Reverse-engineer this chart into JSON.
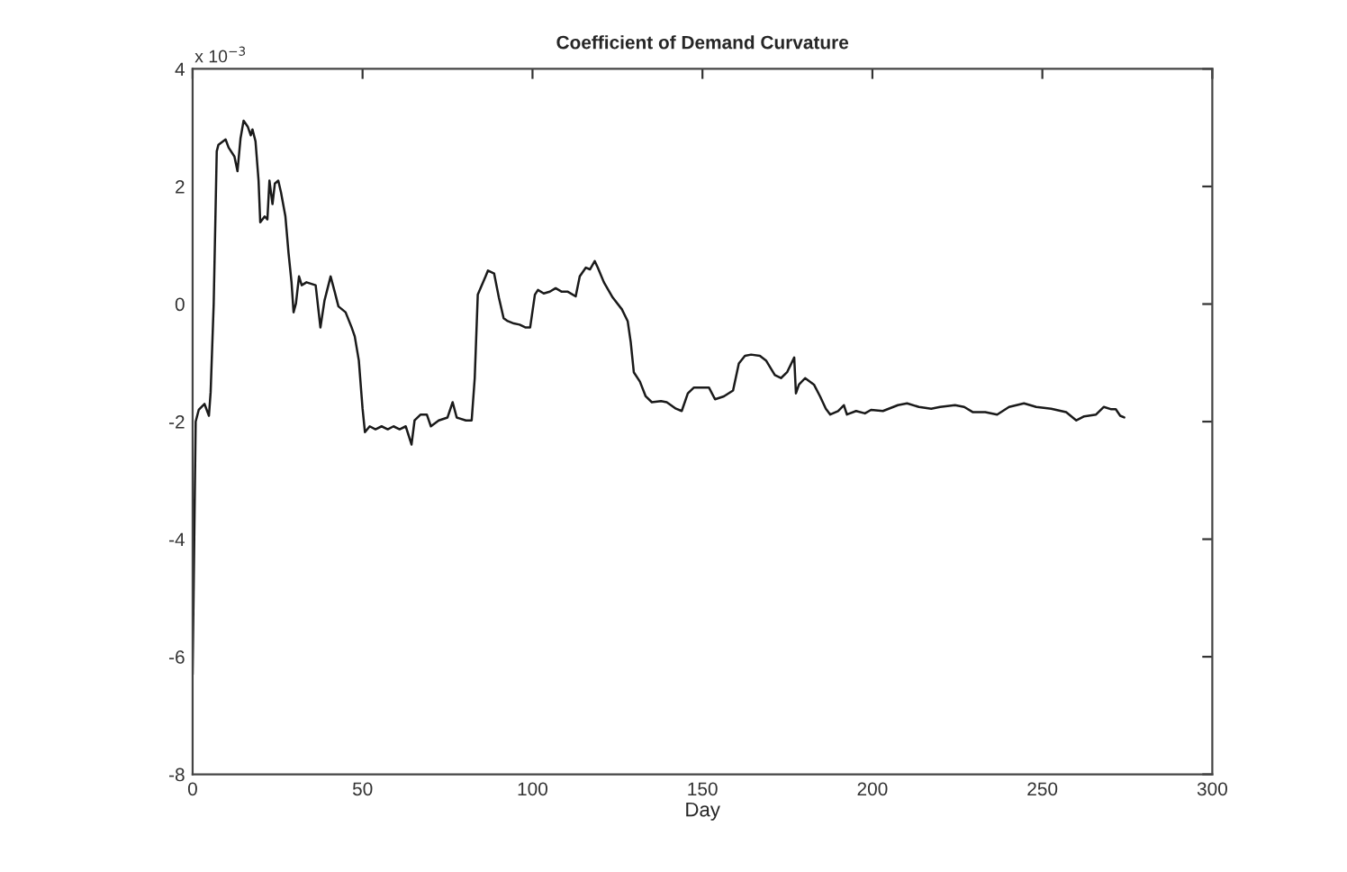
{
  "chart_data": {
    "type": "line",
    "title": "Coefficient of Demand Curvature",
    "xlabel": "Day",
    "annotations": [
      "x 10$^{−3}$"
    ],
    "xlim": [
      0,
      300
    ],
    "xticks": [
      0,
      50,
      100,
      150,
      200,
      250,
      300
    ],
    "ylim": [
      -8,
      4
    ],
    "yticks": [
      -8,
      -6,
      -4,
      -2,
      0,
      2,
      4
    ],
    "marker": "none",
    "line_style": "solid",
    "series": [
      {
        "color": "#1a1a1a",
        "x": [
          0,
          0.9,
          1.8,
          3.5,
          4.8,
          5.3,
          6.2,
          7.1,
          7.6,
          9.7,
          10.6,
          12.3,
          13.2,
          14.1,
          15,
          16.2,
          17.1,
          17.6,
          18.5,
          19.4,
          19.9,
          21.2,
          22,
          22.6,
          23.5,
          24.2,
          25.2,
          26,
          27.3,
          28.2,
          29.1,
          29.7,
          30.4,
          31.3,
          32.1,
          33.5,
          36.2,
          37.6,
          38.8,
          40.6,
          41.8,
          42.9,
          45,
          46.8,
          47.7,
          48.9,
          50,
          50.7,
          52.1,
          53.8,
          55.6,
          57.4,
          59.1,
          60.9,
          62.7,
          64.4,
          65.3,
          67.1,
          68.9,
          70.1,
          72.4,
          75,
          76.5,
          77.7,
          80.4,
          82.1,
          83,
          83.9,
          86.2,
          86.9,
          88.7,
          90.1,
          91.5,
          92.7,
          94.5,
          96.2,
          98,
          99.3,
          100.7,
          101.6,
          103.3,
          105.1,
          106.8,
          108.6,
          110.4,
          112.7,
          113.9,
          115.7,
          116.9,
          118.3,
          119.2,
          121,
          123.6,
          126.3,
          128,
          128.9,
          129.8,
          131.6,
          133.3,
          135.1,
          137.8,
          139.5,
          142.2,
          143.9,
          145.7,
          147.5,
          150.1,
          151.9,
          153.7,
          156.3,
          159,
          160.7,
          162.5,
          164.3,
          166.9,
          168.7,
          171.3,
          173.1,
          174.9,
          177,
          177.5,
          178.4,
          180.2,
          182.8,
          184.6,
          186.3,
          187.6,
          189.9,
          191.6,
          192.5,
          195.2,
          197.8,
          199.6,
          203.1,
          207.5,
          210.2,
          213.7,
          217.3,
          219.9,
          224.3,
          227,
          229.6,
          233.2,
          236.7,
          240.2,
          244.6,
          248.2,
          252.6,
          257,
          260,
          262.3,
          265.8,
          268.1,
          270.3,
          271.6,
          272.9,
          274.1
        ],
        "values": [
          -6.3,
          -2.0,
          -1.8,
          -1.7,
          -1.9,
          -1.5,
          0.0,
          2.6,
          2.71,
          2.8,
          2.66,
          2.51,
          2.26,
          2.82,
          3.12,
          3.02,
          2.87,
          2.97,
          2.77,
          2.1,
          1.39,
          1.49,
          1.44,
          2.1,
          1.7,
          2.05,
          2.1,
          1.9,
          1.49,
          0.88,
          0.37,
          -0.14,
          0.01,
          0.47,
          0.32,
          0.37,
          0.32,
          -0.4,
          0.06,
          0.47,
          0.21,
          -0.04,
          -0.14,
          -0.4,
          -0.55,
          -0.96,
          -1.78,
          -2.18,
          -2.08,
          -2.13,
          -2.08,
          -2.13,
          -2.08,
          -2.13,
          -2.08,
          -2.39,
          -1.98,
          -1.88,
          -1.88,
          -2.08,
          -1.98,
          -1.93,
          -1.67,
          -1.93,
          -1.98,
          -1.98,
          -1.26,
          0.16,
          0.47,
          0.57,
          0.52,
          0.11,
          -0.24,
          -0.29,
          -0.33,
          -0.35,
          -0.4,
          -0.4,
          0.16,
          0.24,
          0.18,
          0.21,
          0.27,
          0.21,
          0.21,
          0.13,
          0.47,
          0.62,
          0.59,
          0.73,
          0.62,
          0.37,
          0.11,
          -0.09,
          -0.29,
          -0.65,
          -1.16,
          -1.32,
          -1.57,
          -1.67,
          -1.65,
          -1.67,
          -1.78,
          -1.82,
          -1.52,
          -1.42,
          -1.42,
          -1.42,
          -1.62,
          -1.57,
          -1.47,
          -1.01,
          -0.88,
          -0.86,
          -0.88,
          -0.96,
          -1.21,
          -1.26,
          -1.16,
          -0.91,
          -1.52,
          -1.37,
          -1.26,
          -1.37,
          -1.57,
          -1.78,
          -1.88,
          -1.82,
          -1.72,
          -1.88,
          -1.82,
          -1.86,
          -1.8,
          -1.82,
          -1.72,
          -1.69,
          -1.75,
          -1.78,
          -1.75,
          -1.72,
          -1.75,
          -1.84,
          -1.84,
          -1.88,
          -1.75,
          -1.69,
          -1.75,
          -1.78,
          -1.84,
          -1.98,
          -1.91,
          -1.88,
          -1.75,
          -1.79,
          -1.79,
          -1.9,
          -1.93
        ]
      }
    ]
  }
}
